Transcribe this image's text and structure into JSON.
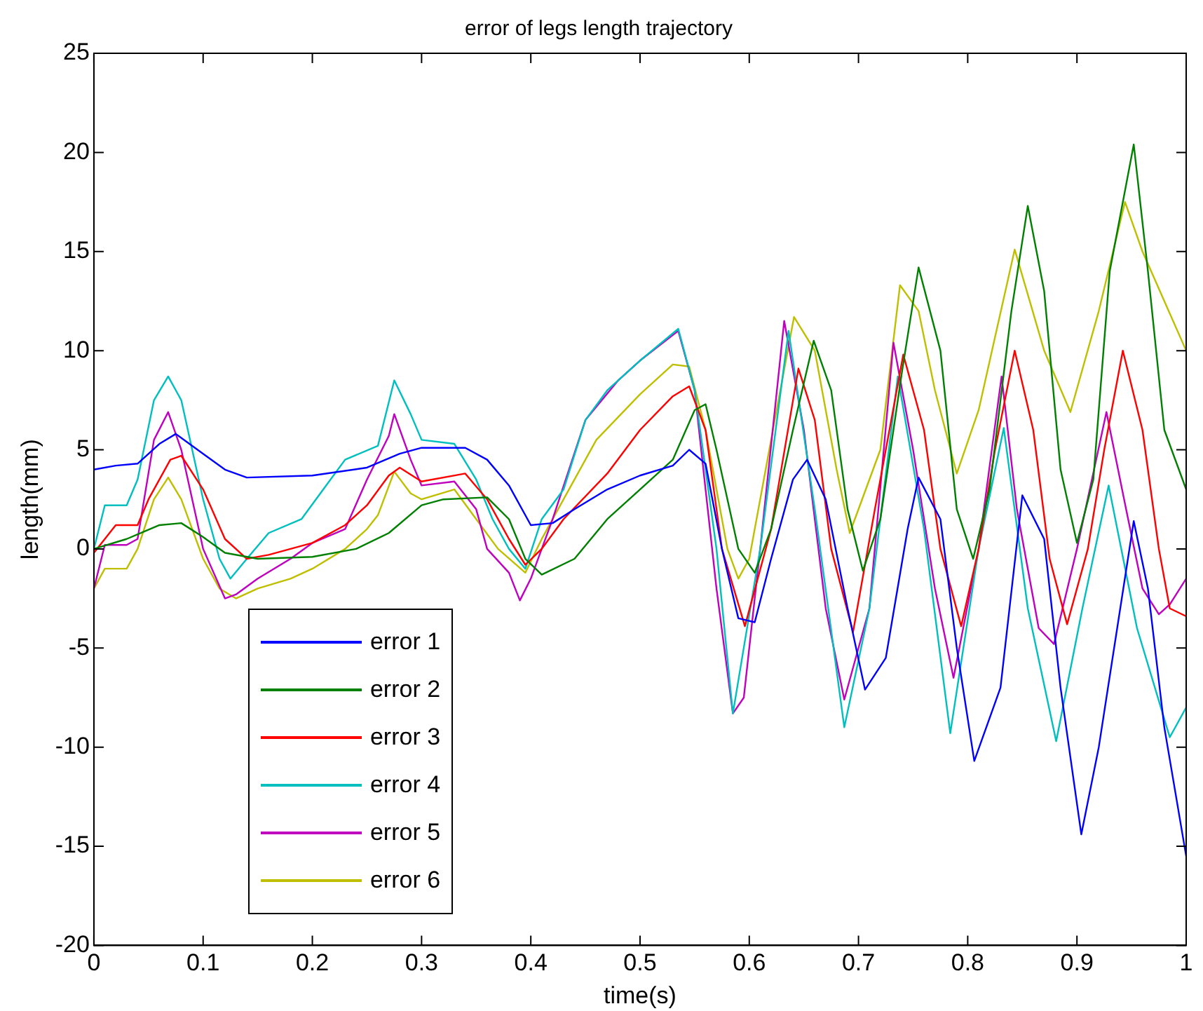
{
  "chart_data": {
    "type": "line",
    "title": "error of legs length trajectory",
    "xlabel": "time(s)",
    "ylabel": "length(mm)",
    "xlim": [
      0,
      1
    ],
    "xticks": [
      0,
      0.1,
      0.2,
      0.3,
      0.4,
      0.5,
      0.6,
      0.7,
      0.8,
      0.9,
      1
    ],
    "ylim": [
      -20,
      25
    ],
    "yticks": [
      -20,
      -15,
      -10,
      -5,
      0,
      5,
      10,
      15,
      20,
      25
    ],
    "grid": false,
    "legend": "bottom left",
    "marker": "none",
    "line_style": "solid",
    "series": [
      {
        "name": "error 1",
        "color": "#0000ff",
        "x": [
          0,
          0.02,
          0.04,
          0.06,
          0.075,
          0.1,
          0.12,
          0.14,
          0.2,
          0.25,
          0.28,
          0.3,
          0.34,
          0.36,
          0.38,
          0.4,
          0.42,
          0.44,
          0.47,
          0.5,
          0.53,
          0.545,
          0.56,
          0.575,
          0.59,
          0.605,
          0.62,
          0.64,
          0.653,
          0.67,
          0.69,
          0.706,
          0.725,
          0.745,
          0.755,
          0.775,
          0.79,
          0.806,
          0.83,
          0.85,
          0.87,
          0.885,
          0.904,
          0.92,
          0.952,
          0.965,
          0.98,
          1
        ],
        "values": [
          4,
          4.2,
          4.3,
          5.3,
          5.8,
          4.8,
          4,
          3.6,
          3.7,
          4.1,
          4.8,
          5.1,
          5.1,
          4.5,
          3.2,
          1.2,
          1.3,
          2,
          3,
          3.7,
          4.2,
          5,
          4.3,
          0,
          -3.5,
          -3.7,
          -0.5,
          3.5,
          4.5,
          2.5,
          -3,
          -7.1,
          -5.5,
          1,
          3.6,
          1.5,
          -5,
          -10.7,
          -7,
          2.7,
          0.5,
          -7,
          -14.4,
          -10,
          1.4,
          -2,
          -9,
          -15.5
        ]
      },
      {
        "name": "error 2",
        "color": "#008000",
        "x": [
          0,
          0.03,
          0.06,
          0.08,
          0.1,
          0.12,
          0.15,
          0.2,
          0.24,
          0.27,
          0.3,
          0.32,
          0.36,
          0.38,
          0.395,
          0.41,
          0.44,
          0.47,
          0.5,
          0.53,
          0.55,
          0.56,
          0.57,
          0.59,
          0.605,
          0.62,
          0.64,
          0.659,
          0.675,
          0.69,
          0.704,
          0.72,
          0.74,
          0.755,
          0.775,
          0.79,
          0.805,
          0.82,
          0.84,
          0.855,
          0.87,
          0.885,
          0.9,
          0.915,
          0.93,
          0.952,
          0.965,
          0.98,
          1
        ],
        "values": [
          0,
          0.5,
          1.2,
          1.3,
          0.6,
          -0.2,
          -0.5,
          -0.4,
          0,
          0.8,
          2.2,
          2.5,
          2.6,
          1.5,
          -0.5,
          -1.3,
          -0.5,
          1.5,
          3,
          4.5,
          7,
          7.3,
          5,
          0,
          -1.2,
          1,
          6,
          10.5,
          8,
          2,
          -1.1,
          1.5,
          9,
          14.2,
          10,
          2,
          -0.5,
          3,
          12,
          17.3,
          13,
          4,
          0.3,
          3.5,
          14,
          20.4,
          14,
          6,
          3
        ]
      },
      {
        "name": "error 3",
        "color": "#ff0000",
        "x": [
          0,
          0.01,
          0.02,
          0.04,
          0.05,
          0.07,
          0.08,
          0.1,
          0.12,
          0.14,
          0.16,
          0.2,
          0.23,
          0.25,
          0.27,
          0.28,
          0.3,
          0.34,
          0.36,
          0.38,
          0.395,
          0.41,
          0.43,
          0.47,
          0.5,
          0.53,
          0.545,
          0.56,
          0.575,
          0.596,
          0.62,
          0.645,
          0.66,
          0.675,
          0.695,
          0.715,
          0.741,
          0.76,
          0.775,
          0.794,
          0.81,
          0.825,
          0.843,
          0.86,
          0.875,
          0.891,
          0.91,
          0.925,
          0.942,
          0.96,
          0.975,
          0.985,
          1
        ],
        "values": [
          -0.2,
          0.5,
          1.2,
          1.2,
          2.5,
          4.5,
          4.7,
          3,
          0.5,
          -0.5,
          -0.3,
          0.3,
          1.2,
          2.2,
          3.7,
          4.1,
          3.4,
          3.8,
          2.5,
          0.5,
          -0.8,
          0,
          1.5,
          3.8,
          6,
          7.7,
          8.2,
          6,
          0,
          -3.9,
          1,
          9.1,
          6.5,
          0,
          -4.2,
          2,
          9.8,
          6,
          0,
          -3.9,
          0,
          5,
          10,
          6,
          -0.5,
          -3.8,
          0,
          5,
          10,
          6,
          0,
          -3,
          -3.4
        ]
      },
      {
        "name": "error 4",
        "color": "#00bfbf",
        "x": [
          0,
          0.01,
          0.03,
          0.04,
          0.055,
          0.068,
          0.08,
          0.1,
          0.115,
          0.125,
          0.14,
          0.16,
          0.19,
          0.21,
          0.23,
          0.26,
          0.275,
          0.29,
          0.3,
          0.33,
          0.35,
          0.365,
          0.38,
          0.395,
          0.41,
          0.43,
          0.45,
          0.47,
          0.5,
          0.535,
          0.55,
          0.57,
          0.585,
          0.61,
          0.636,
          0.66,
          0.687,
          0.71,
          0.736,
          0.76,
          0.784,
          0.81,
          0.833,
          0.855,
          0.881,
          0.905,
          0.929,
          0.955,
          0.985,
          1
        ],
        "values": [
          0,
          2.2,
          2.2,
          3.5,
          7.5,
          8.7,
          7.5,
          2.5,
          -0.5,
          -1.5,
          -0.5,
          0.8,
          1.5,
          3,
          4.5,
          5.2,
          8.5,
          6.8,
          5.5,
          5.3,
          3.5,
          1.5,
          0,
          -1,
          1.5,
          3,
          6.5,
          8,
          9.5,
          11.1,
          8,
          0,
          -8.3,
          0,
          11,
          2,
          -9,
          -3,
          8.7,
          1,
          -9.3,
          0,
          6.1,
          -3,
          -9.7,
          -3,
          3.2,
          -4,
          -9.5,
          -8
        ]
      },
      {
        "name": "error 5",
        "color": "#bf00bf",
        "x": [
          0,
          0.01,
          0.03,
          0.04,
          0.055,
          0.068,
          0.08,
          0.1,
          0.12,
          0.13,
          0.15,
          0.18,
          0.2,
          0.23,
          0.25,
          0.27,
          0.275,
          0.29,
          0.3,
          0.33,
          0.35,
          0.36,
          0.38,
          0.39,
          0.4,
          0.42,
          0.45,
          0.48,
          0.5,
          0.535,
          0.55,
          0.57,
          0.585,
          0.595,
          0.61,
          0.632,
          0.65,
          0.67,
          0.687,
          0.71,
          0.732,
          0.75,
          0.77,
          0.787,
          0.81,
          0.831,
          0.845,
          0.865,
          0.879,
          0.9,
          0.927,
          0.945,
          0.96,
          0.975,
          0.985,
          1
        ],
        "values": [
          -2,
          0.2,
          0.2,
          0.5,
          5.5,
          6.9,
          5,
          0,
          -2.5,
          -2.3,
          -1.5,
          -0.5,
          0.3,
          1,
          3.5,
          5.7,
          6.8,
          4.5,
          3.2,
          3.4,
          2,
          0,
          -1.2,
          -2.6,
          -1.5,
          1.5,
          6.5,
          8.5,
          9.5,
          11,
          8,
          -2,
          -8.3,
          -7.5,
          0,
          11.5,
          6,
          -3,
          -7.6,
          -3,
          10.4,
          5,
          -2,
          -6.5,
          0,
          8.7,
          2,
          -4,
          -4.8,
          0,
          6.9,
          2,
          -2,
          -3.3,
          -2.8,
          -1.5
        ]
      },
      {
        "name": "error 6",
        "color": "#bfbf00",
        "x": [
          0,
          0.01,
          0.03,
          0.04,
          0.055,
          0.068,
          0.08,
          0.1,
          0.115,
          0.13,
          0.15,
          0.18,
          0.2,
          0.23,
          0.25,
          0.26,
          0.275,
          0.29,
          0.3,
          0.33,
          0.35,
          0.37,
          0.395,
          0.41,
          0.43,
          0.46,
          0.5,
          0.53,
          0.545,
          0.56,
          0.58,
          0.59,
          0.6,
          0.625,
          0.641,
          0.66,
          0.68,
          0.692,
          0.72,
          0.738,
          0.755,
          0.77,
          0.79,
          0.81,
          0.843,
          0.87,
          0.894,
          0.92,
          0.944,
          0.96,
          0.98,
          1
        ],
        "values": [
          -2,
          -1,
          -1,
          0,
          2.5,
          3.6,
          2.5,
          -0.5,
          -2,
          -2.5,
          -2,
          -1.5,
          -1,
          0,
          1,
          1.7,
          3.9,
          2.8,
          2.5,
          3,
          1.5,
          0,
          -1.2,
          0.5,
          2.5,
          5.5,
          7.8,
          9.3,
          9.2,
          6,
          0,
          -1.5,
          -0.5,
          7,
          11.7,
          10,
          4,
          0.8,
          5,
          13.3,
          12,
          8,
          3.8,
          7,
          15.1,
          10,
          6.9,
          12,
          17.5,
          15,
          12.5,
          10
        ]
      }
    ]
  }
}
